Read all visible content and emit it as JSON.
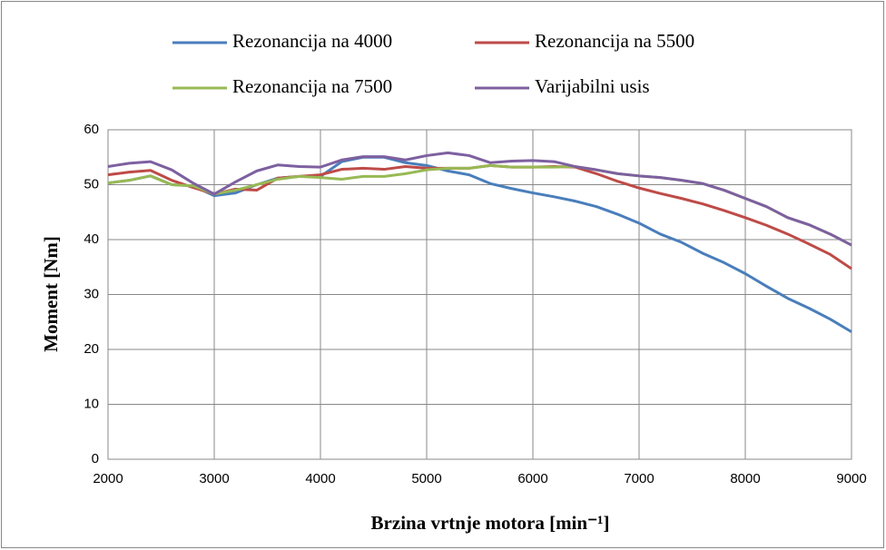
{
  "chart_data": {
    "type": "line",
    "xlabel": "Brzina vrtnje motora [min⁻¹]",
    "ylabel": "Moment [Nm]",
    "x": [
      2000,
      2200,
      2400,
      2600,
      2800,
      3000,
      3200,
      3400,
      3600,
      3800,
      4000,
      4200,
      4400,
      4600,
      4800,
      5000,
      5200,
      5400,
      5600,
      5800,
      6000,
      6200,
      6400,
      6600,
      6800,
      7000,
      7200,
      7400,
      7600,
      7800,
      8000,
      8200,
      8400,
      8600,
      8800,
      9000
    ],
    "series": [
      {
        "name": "Rezonancija na 4000",
        "color": "#4a7ebb",
        "values": [
          50.3,
          50.8,
          51.6,
          50.0,
          49.8,
          48.0,
          48.5,
          50.0,
          51.2,
          51.5,
          51.5,
          54.2,
          55.0,
          55.0,
          54.0,
          53.5,
          52.5,
          51.8,
          50.2,
          49.3,
          48.5,
          47.8,
          47.0,
          46.0,
          44.6,
          43.0,
          41.0,
          39.5,
          37.5,
          35.8,
          33.8,
          31.5,
          29.3,
          27.5,
          25.5,
          23.2
        ]
      },
      {
        "name": "Rezonancija na 5500",
        "color": "#be4b48",
        "values": [
          51.8,
          52.3,
          52.6,
          50.8,
          49.5,
          48.3,
          49.2,
          49.0,
          51.2,
          51.5,
          51.8,
          52.8,
          53.0,
          52.8,
          53.3,
          53.0,
          53.0,
          53.0,
          53.5,
          53.2,
          53.2,
          53.3,
          53.2,
          52.0,
          50.6,
          49.4,
          48.4,
          47.5,
          46.5,
          45.3,
          44.0,
          42.6,
          41.0,
          39.2,
          37.3,
          34.7
        ]
      },
      {
        "name": "Rezonancija na 7500",
        "color": "#98b954",
        "values": [
          50.3,
          50.8,
          51.6,
          50.0,
          49.8,
          48.3,
          49.0,
          50.0,
          51.0,
          51.5,
          51.3,
          51.0,
          51.5,
          51.5,
          52.0,
          52.7,
          53.0,
          53.0,
          53.5,
          53.2,
          53.2,
          53.2,
          53.3,
          52.7,
          52.0,
          51.6,
          51.3,
          50.8,
          50.2,
          49.0,
          47.5,
          46.0,
          44.0,
          42.7,
          41.0,
          39.0
        ]
      },
      {
        "name": "Varijabilni usis",
        "color": "#7d60a0",
        "values": [
          53.3,
          53.9,
          54.2,
          52.7,
          50.3,
          48.3,
          50.5,
          52.5,
          53.6,
          53.3,
          53.2,
          54.5,
          55.1,
          55.1,
          54.5,
          55.3,
          55.8,
          55.3,
          54.0,
          54.3,
          54.4,
          54.2,
          53.3,
          52.7,
          52.0,
          51.6,
          51.3,
          50.8,
          50.2,
          49.0,
          47.5,
          46.0,
          44.0,
          42.7,
          41.0,
          39.0
        ]
      }
    ],
    "xlim": [
      2000,
      9000
    ],
    "xticks": [
      2000,
      3000,
      4000,
      5000,
      6000,
      7000,
      8000,
      9000
    ],
    "ylim": [
      0,
      60
    ],
    "yticks": [
      0,
      10,
      20,
      30,
      40,
      50,
      60
    ],
    "grid": true,
    "legend": "top"
  }
}
